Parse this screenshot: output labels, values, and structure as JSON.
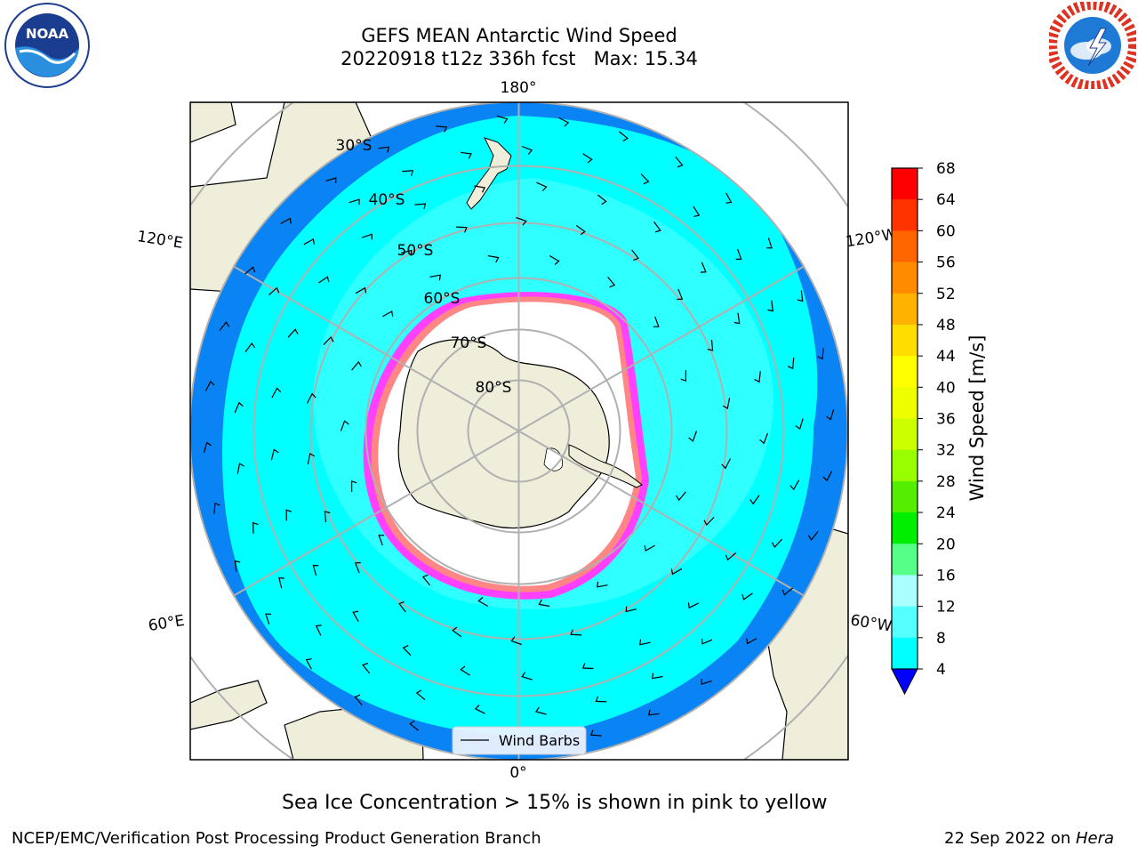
{
  "header": {
    "title_line1": "GEFS MEAN Antarctic Wind Speed",
    "title_line2": "20220918 t12z 336h fcst   Max: 15.34"
  },
  "logos": {
    "left": {
      "name": "noaa-logo",
      "text": "NOAA"
    },
    "right": {
      "name": "nws-logo"
    }
  },
  "map": {
    "projection": "south-polar-stereographic",
    "meridian_labels": [
      "180°",
      "120°E",
      "120°W",
      "60°E",
      "60°W",
      "0°"
    ],
    "parallel_labels": [
      "30°S",
      "40°S",
      "50°S",
      "60°S",
      "70°S",
      "80°S"
    ],
    "colors": {
      "ocean_low": "#0a84f5",
      "ocean_mid": "#00ffff",
      "ocean_high": "#55ffff",
      "land": "#efeedb",
      "sea_ice": "#ffffff",
      "ice_edge_pink": "#ff40ff",
      "ice_edge_yellow": "#ffc020"
    },
    "legend": {
      "label": "Wind Barbs"
    }
  },
  "colorbar": {
    "label": "Wind Speed [m/s]",
    "ticks": [
      "68",
      "64",
      "60",
      "56",
      "52",
      "48",
      "44",
      "40",
      "36",
      "32",
      "28",
      "24",
      "20",
      "16",
      "12",
      "8",
      "4"
    ],
    "colors": [
      "#ff0000",
      "#ff3300",
      "#ff6600",
      "#ff8c00",
      "#ffb300",
      "#ffdd00",
      "#ffff00",
      "#eeff00",
      "#ccff00",
      "#99ff00",
      "#55ee00",
      "#00ee00",
      "#55ff88",
      "#aaffff",
      "#55ffff",
      "#00ffff",
      "#0a84f5"
    ],
    "extend_color": "#0000ff"
  },
  "caption": "Sea Ice Concentration > 15% is shown in pink to yellow",
  "footer": {
    "left": "NCEP/EMC/Verification Post Processing Product Generation Branch",
    "right_date": "22 Sep 2022 on ",
    "right_host": "Hera"
  }
}
